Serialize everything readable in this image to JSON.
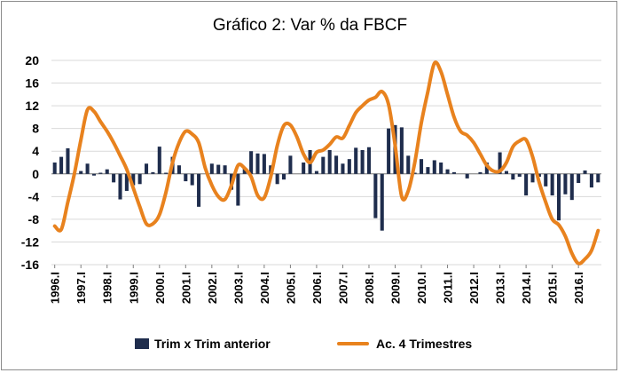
{
  "chart_data": {
    "type": "bar+line",
    "title": "Gráfico 2: Var % da FBCF",
    "xlabel": "",
    "ylabel": "",
    "ylim": [
      -16,
      20
    ],
    "yticks": [
      20,
      16,
      12,
      8,
      4,
      0,
      -4,
      -8,
      -12,
      -16
    ],
    "xtick_labels": [
      "1996.I",
      "1997.I",
      "1998.I",
      "1999.I",
      "2000.I",
      "2001.I",
      "2002.I",
      "2003.I",
      "2004.I",
      "2005.I",
      "2006.I",
      "2007.I",
      "2008.I",
      "2009.I",
      "2010.I",
      "2011.I",
      "2012.I",
      "2013.I",
      "2014.I",
      "2015.I",
      "2016.I"
    ],
    "grid": true,
    "legend_position": "bottom",
    "colors": {
      "bars": "#1f2d4d",
      "line": "#e8821e",
      "grid": "#d9d9d9"
    },
    "series": [
      {
        "name": "Trim x Trim anterior",
        "kind": "bar",
        "values": [
          2.0,
          3.0,
          4.5,
          0.0,
          0.5,
          1.8,
          -0.3,
          0.2,
          0.8,
          -1.5,
          -4.5,
          -3.0,
          -2.0,
          -1.8,
          1.8,
          0.3,
          4.8,
          0.2,
          3.0,
          1.5,
          -1.3,
          -2.0,
          -5.8,
          0.0,
          1.8,
          1.6,
          1.5,
          -2.8,
          -5.6,
          1.0,
          4.0,
          3.6,
          3.5,
          1.5,
          -1.8,
          -1.0,
          3.2,
          0.0,
          2.0,
          4.2,
          0.5,
          3.0,
          4.2,
          3.2,
          1.8,
          2.6,
          4.6,
          4.2,
          4.7,
          -7.8,
          -10.0,
          8.0,
          8.6,
          8.2,
          3.2,
          0.2,
          2.6,
          1.2,
          2.4,
          2.0,
          0.8,
          0.3,
          0.0,
          -0.8,
          0.0,
          0.3,
          2.0,
          0.0,
          3.8,
          0.5,
          -1.0,
          -0.5,
          -3.8,
          -1.5,
          -0.5,
          -2.2,
          -3.8,
          -8.2,
          -3.6,
          -4.6,
          -1.6,
          0.6,
          -2.4,
          -1.5
        ]
      },
      {
        "name": "Ac. 4 Trimestres",
        "kind": "line",
        "values": [
          -9.2,
          -9.8,
          -5.0,
          0.0,
          6.0,
          11.3,
          11.0,
          9.2,
          7.5,
          5.5,
          3.2,
          0.8,
          -2.5,
          -5.8,
          -8.8,
          -8.8,
          -7.2,
          -3.2,
          2.0,
          5.5,
          7.5,
          7.0,
          5.5,
          1.0,
          -2.0,
          -4.0,
          -4.5,
          -2.0,
          1.5,
          1.0,
          -0.5,
          -3.8,
          -4.2,
          -0.5,
          5.0,
          8.5,
          8.6,
          6.5,
          3.5,
          2.0,
          3.8,
          4.2,
          5.2,
          6.5,
          6.3,
          8.5,
          10.8,
          12.0,
          13.0,
          13.5,
          14.5,
          12.2,
          5.0,
          -4.0,
          -3.0,
          2.0,
          9.0,
          14.5,
          19.5,
          18.0,
          14.0,
          10.0,
          7.5,
          6.8,
          5.5,
          3.5,
          1.5,
          0.5,
          0.5,
          2.0,
          4.8,
          5.8,
          6.0,
          3.0,
          -1.5,
          -5.0,
          -8.0,
          -9.0,
          -11.0,
          -14.0,
          -15.8,
          -15.0,
          -13.5,
          -10.0
        ]
      }
    ]
  }
}
